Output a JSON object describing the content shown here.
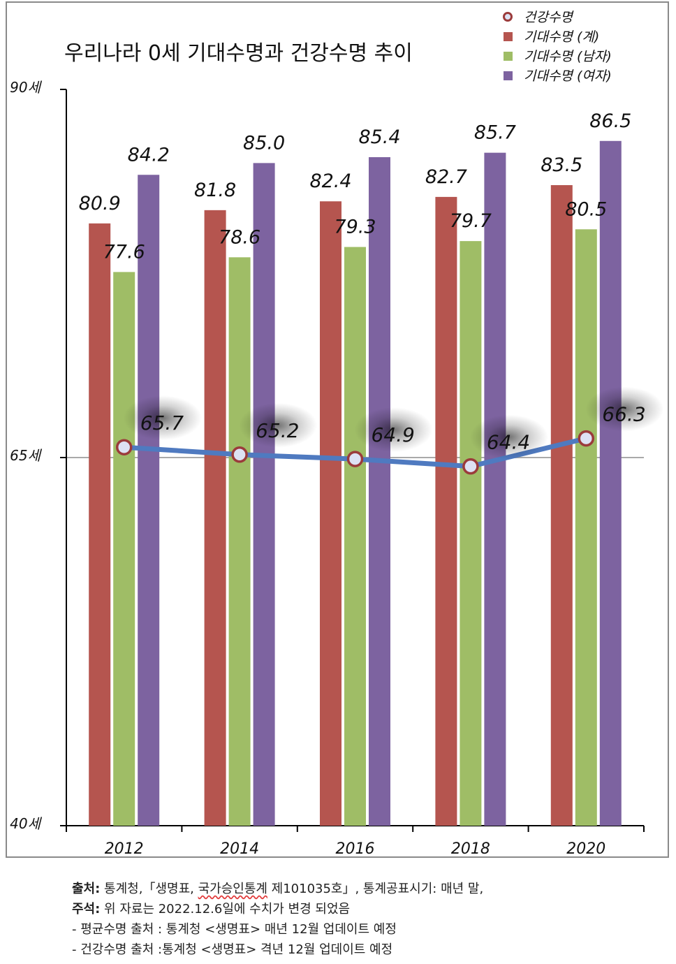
{
  "chart_data": {
    "type": "bar",
    "title": "우리나라 0세 기대수명과 건강수명 추이",
    "categories": [
      "2012",
      "2014",
      "2016",
      "2018",
      "2020"
    ],
    "ylim": [
      40,
      90
    ],
    "y_ticks": [
      "40세",
      "65세",
      "90세"
    ],
    "y_tick_values": [
      40,
      65,
      90
    ],
    "grid": "horizontal line at 65",
    "legend_position": "top-right",
    "series": [
      {
        "name": "기대수명 (계)",
        "kind": "bar",
        "color": "#b5554f",
        "values": [
          80.9,
          81.8,
          82.4,
          82.7,
          83.5
        ],
        "labels": [
          "80.9",
          "81.8",
          "82.4",
          "82.7",
          "83.5"
        ]
      },
      {
        "name": "기대수명 (남자)",
        "kind": "bar",
        "color": "#9fbd66",
        "values": [
          77.6,
          78.6,
          79.3,
          79.7,
          80.5
        ],
        "labels": [
          "77.6",
          "78.6",
          "79.3",
          "79.7",
          "80.5"
        ]
      },
      {
        "name": "기대수명 (여자)",
        "kind": "bar",
        "color": "#7d63a0",
        "values": [
          84.2,
          85.0,
          85.4,
          85.7,
          86.5
        ],
        "labels": [
          "84.2",
          "85.0",
          "85.4",
          "85.7",
          "86.5"
        ]
      },
      {
        "name": "건강수명",
        "kind": "line",
        "color": "#4f7ac0",
        "marker_edge": "#9b3b3b",
        "marker_fill": "#dde2f4",
        "values": [
          65.7,
          65.2,
          64.9,
          64.4,
          66.3
        ],
        "labels": [
          "65.7",
          "65.2",
          "64.9",
          "64.4",
          "66.3"
        ]
      }
    ],
    "legend": [
      "건강수명",
      "기대수명 (계)",
      "기대수명 (남자)",
      "기대수명 (여자)"
    ]
  },
  "notes": {
    "source_label": "출처:",
    "source_pre": " 통계청,「생명표, ",
    "source_mark": "국가승인통계",
    "source_post": " 제101035호」, 통계공표시기: 매년 말,",
    "remark_label": "주석:",
    "remark_text": " 위 자료는 2022.12.6일에 수치가 변경 되었음",
    "line3": "- 평균수명 출처 : 통계청 <생명표> 매년 12월 업데이트 예정",
    "line4": "- 건강수명 출처 :통계청 <생명표> 격년 12월 업데이트 예정"
  }
}
